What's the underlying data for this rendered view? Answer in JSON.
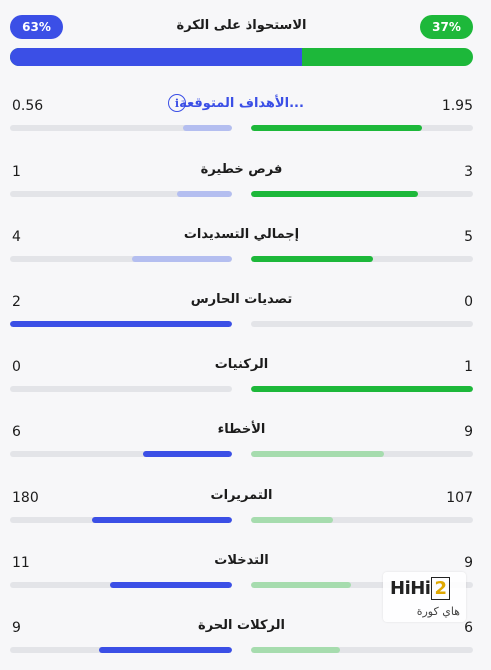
{
  "possession": {
    "title": "الاستحواذ على الكرة",
    "home_percent_label": "37%",
    "away_percent_label": "63%",
    "away_fraction": 0.63,
    "home_color": "#1db83a",
    "away_color": "#3b4fe6"
  },
  "stats": [
    {
      "label": "الأهداف المتوقعة...",
      "home": "1.95",
      "away": "0.56",
      "home_fill": 0.77,
      "away_fill": 0.22,
      "home_color": "#1db83a",
      "away_color": "#b4bef0",
      "info": true,
      "link": true
    },
    {
      "label": "فرص خطيرة",
      "home": "3",
      "away": "1",
      "home_fill": 0.75,
      "away_fill": 0.25,
      "home_color": "#1db83a",
      "away_color": "#b4bef0"
    },
    {
      "label": "إجمالي التسديدات",
      "home": "5",
      "away": "4",
      "home_fill": 0.55,
      "away_fill": 0.45,
      "home_color": "#1db83a",
      "away_color": "#b4bef0"
    },
    {
      "label": "تصديات الحارس",
      "home": "0",
      "away": "2",
      "home_fill": 0.0,
      "away_fill": 1.0,
      "home_color": "#1db83a",
      "away_color": "#3b4fe6"
    },
    {
      "label": "الركنيات",
      "home": "1",
      "away": "0",
      "home_fill": 1.0,
      "away_fill": 0.0,
      "home_color": "#1db83a",
      "away_color": "#b4bef0"
    },
    {
      "label": "الأخطاء",
      "home": "9",
      "away": "6",
      "home_fill": 0.6,
      "away_fill": 0.4,
      "home_color": "#a6dcae",
      "away_color": "#3b4fe6"
    },
    {
      "label": "التمريرات",
      "home": "107",
      "away": "180",
      "home_fill": 0.37,
      "away_fill": 0.63,
      "home_color": "#a6dcae",
      "away_color": "#3b4fe6"
    },
    {
      "label": "التدخلات",
      "home": "9",
      "away": "11",
      "home_fill": 0.45,
      "away_fill": 0.55,
      "home_color": "#a6dcae",
      "away_color": "#3b4fe6"
    },
    {
      "label": "الركلات الحرة",
      "home": "6",
      "away": "9",
      "home_fill": 0.4,
      "away_fill": 0.6,
      "home_color": "#a6dcae",
      "away_color": "#3b4fe6"
    }
  ],
  "info_icon": "info-icon",
  "watermark": {
    "brand": "HiHi",
    "brand_digit": "2",
    "subtitle": "هاي كورة"
  }
}
